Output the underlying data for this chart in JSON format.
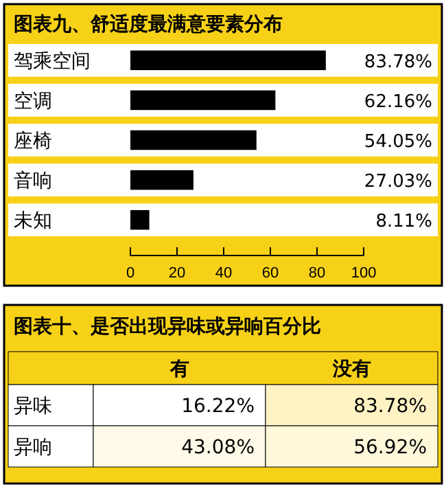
{
  "chart_data": [
    {
      "type": "bar",
      "title": "图表九、舒适度最满意要素分布",
      "orientation": "horizontal",
      "categories": [
        "驾乘空间",
        "空调",
        "座椅",
        "音响",
        "未知"
      ],
      "values": [
        83.78,
        62.16,
        54.05,
        27.03,
        8.11
      ],
      "value_labels": [
        "83.78%",
        "62.16%",
        "54.05%",
        "27.03%",
        "8.11%"
      ],
      "color": "#000000",
      "xlim": [
        0,
        100
      ],
      "xticks": [
        0,
        20,
        40,
        60,
        80,
        100
      ]
    },
    {
      "type": "heatmap",
      "title": "图表十、是否出现异味或异响百分比",
      "categories": [
        "有",
        "没有"
      ],
      "y_categories": [
        "异味",
        "异响"
      ],
      "cells": [
        [
          16.22,
          83.78
        ],
        [
          43.08,
          56.92
        ]
      ],
      "cell_labels": [
        [
          "16.22%",
          "83.78%"
        ],
        [
          "43.08%",
          "56.92%"
        ]
      ]
    }
  ]
}
